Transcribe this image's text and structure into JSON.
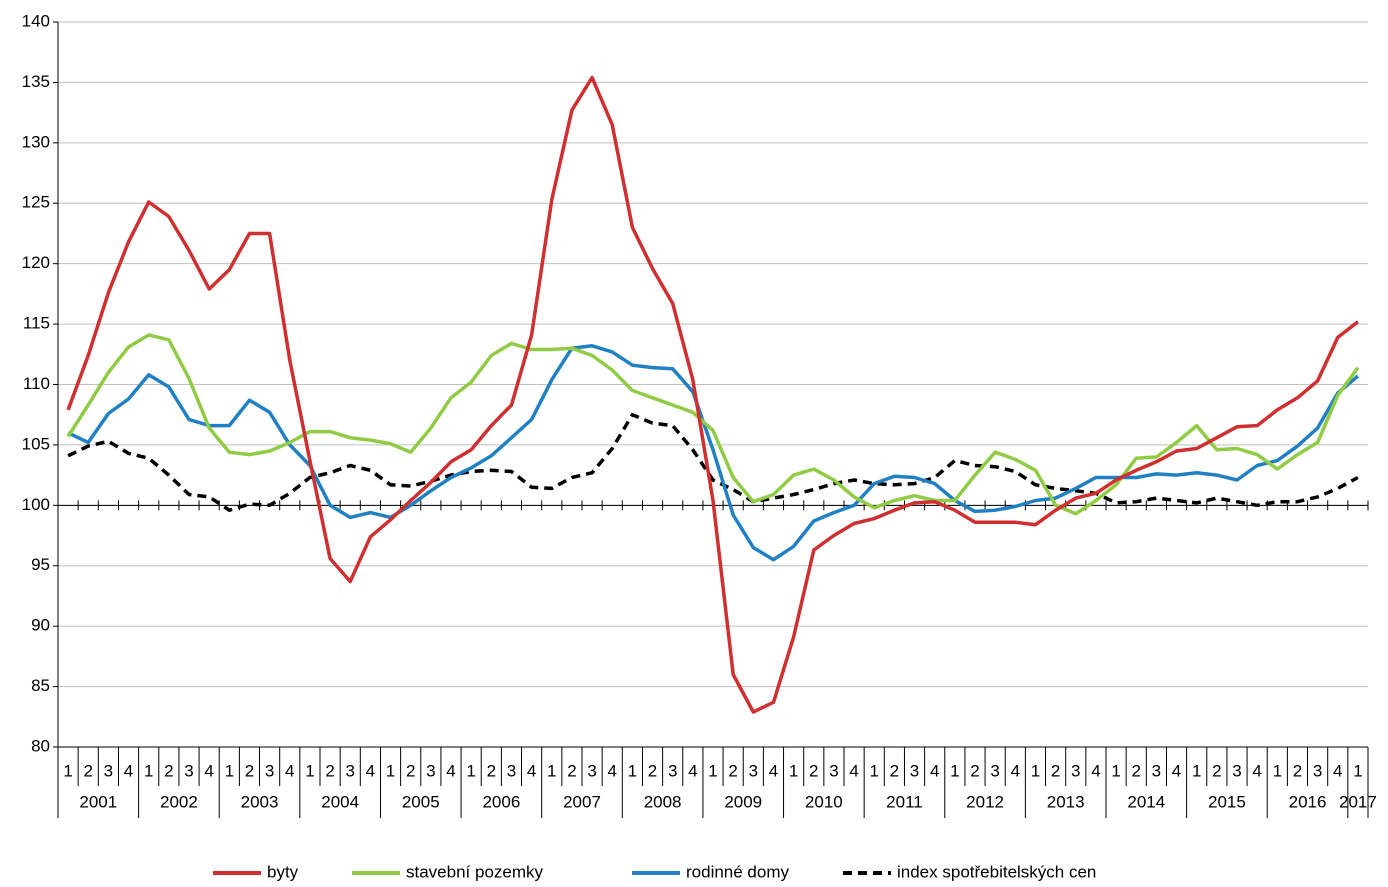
{
  "chart_data": {
    "type": "line",
    "categories": [
      "1",
      "2",
      "3",
      "4",
      "1",
      "2",
      "3",
      "4",
      "1",
      "2",
      "3",
      "4",
      "1",
      "2",
      "3",
      "4",
      "1",
      "2",
      "3",
      "4",
      "1",
      "2",
      "3",
      "4",
      "1",
      "2",
      "3",
      "4",
      "1",
      "2",
      "3",
      "4",
      "1",
      "2",
      "3",
      "4",
      "1",
      "2",
      "3",
      "4",
      "1",
      "2",
      "3",
      "4",
      "1",
      "2",
      "3",
      "4",
      "1",
      "2",
      "3",
      "4",
      "1",
      "2",
      "3",
      "4",
      "1",
      "2",
      "3",
      "4",
      "1",
      "2",
      "3",
      "4",
      "1"
    ],
    "years": [
      "2001",
      "2002",
      "2003",
      "2004",
      "2005",
      "2006",
      "2007",
      "2008",
      "2009",
      "2010",
      "2011",
      "2012",
      "2013",
      "2014",
      "2015",
      "2016",
      "2017"
    ],
    "series": [
      {
        "name": "byty",
        "color": "#d02f2f",
        "dashed": false,
        "values": [
          107.9,
          112.4,
          117.6,
          121.8,
          125.1,
          123.9,
          121.1,
          117.9,
          119.5,
          122.5,
          122.5,
          112.0,
          103.7,
          95.6,
          93.7,
          97.4,
          98.8,
          100.4,
          101.9,
          103.6,
          104.6,
          106.6,
          108.3,
          114.1,
          125.3,
          132.7,
          135.4,
          131.5,
          123.0,
          119.6,
          116.7,
          110.4,
          100.4,
          86.0,
          82.9,
          83.7,
          89.1,
          96.3,
          97.5,
          98.5,
          98.9,
          99.6,
          100.2,
          100.3,
          99.6,
          98.6,
          98.6,
          98.6,
          98.4,
          99.6,
          100.6,
          101.0,
          102.1,
          102.9,
          103.6,
          104.5,
          104.7,
          105.6,
          106.5,
          106.6,
          107.9,
          108.9,
          110.3,
          113.9,
          115.2
        ]
      },
      {
        "name": "stavební pozemky",
        "color": "#8fcc44",
        "dashed": false,
        "values": [
          105.7,
          108.3,
          111.0,
          113.1,
          114.1,
          113.7,
          110.5,
          106.4,
          104.4,
          104.2,
          104.5,
          105.2,
          106.1,
          106.1,
          105.6,
          105.4,
          105.1,
          104.4,
          106.4,
          108.9,
          110.2,
          112.4,
          113.4,
          112.9,
          112.9,
          113.0,
          112.4,
          111.2,
          109.5,
          108.9,
          108.3,
          107.7,
          106.2,
          102.3,
          100.3,
          100.9,
          102.5,
          103.0,
          102.1,
          100.7,
          99.8,
          100.4,
          100.8,
          100.4,
          100.4,
          102.5,
          104.4,
          103.8,
          102.9,
          100.0,
          99.3,
          100.4,
          101.7,
          103.9,
          104.0,
          105.2,
          106.6,
          104.6,
          104.7,
          104.2,
          103.0,
          104.2,
          105.2,
          109.1,
          111.4
        ]
      },
      {
        "name": "rodinné domy",
        "color": "#1f80c4",
        "dashed": false,
        "values": [
          106.0,
          105.2,
          107.6,
          108.8,
          110.8,
          109.8,
          107.1,
          106.6,
          106.6,
          108.7,
          107.7,
          105.0,
          103.3,
          100.0,
          99.0,
          99.4,
          99.0,
          100.0,
          101.2,
          102.3,
          103.1,
          104.1,
          105.6,
          107.1,
          110.4,
          113.0,
          113.2,
          112.7,
          111.6,
          111.4,
          111.3,
          109.4,
          104.6,
          99.2,
          96.5,
          95.5,
          96.6,
          98.7,
          99.4,
          100.0,
          101.8,
          102.4,
          102.3,
          101.8,
          100.4,
          99.5,
          99.6,
          99.9,
          100.4,
          100.6,
          101.4,
          102.3,
          102.3,
          102.3,
          102.6,
          102.5,
          102.7,
          102.5,
          102.1,
          103.3,
          103.7,
          104.9,
          106.4,
          109.3,
          110.7
        ]
      },
      {
        "name": "index spotřebitelských cen",
        "color": "#000000",
        "dashed": true,
        "values": [
          104.1,
          104.9,
          105.3,
          104.3,
          103.9,
          102.5,
          100.9,
          100.7,
          99.6,
          100.1,
          100.0,
          101.0,
          102.3,
          102.7,
          103.3,
          102.9,
          101.7,
          101.6,
          102.0,
          102.5,
          102.8,
          102.9,
          102.8,
          101.5,
          101.4,
          102.3,
          102.7,
          104.7,
          107.5,
          106.8,
          106.6,
          104.6,
          102.1,
          101.3,
          100.3,
          100.6,
          100.9,
          101.3,
          101.8,
          102.1,
          101.8,
          101.7,
          101.8,
          102.3,
          103.7,
          103.3,
          103.2,
          102.8,
          101.7,
          101.4,
          101.2,
          101.0,
          100.2,
          100.3,
          100.6,
          100.4,
          100.2,
          100.6,
          100.3,
          100.0,
          100.3,
          100.3,
          100.7,
          101.4,
          102.3
        ]
      }
    ],
    "ylim": [
      80,
      140
    ],
    "yticks": [
      80,
      85,
      90,
      95,
      100,
      105,
      110,
      115,
      120,
      125,
      130,
      135,
      140
    ],
    "x_axis_crosses": 100,
    "grid": true,
    "legend": "bottom"
  }
}
